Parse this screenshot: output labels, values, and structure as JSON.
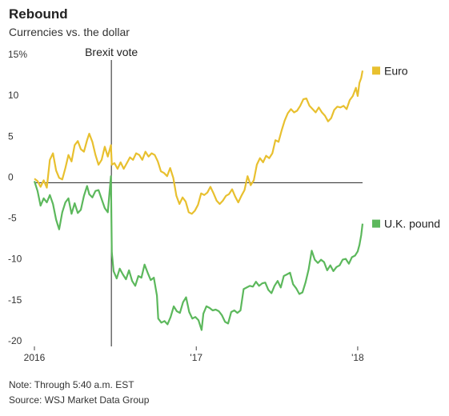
{
  "header": {
    "title": "Rebound",
    "subtitle": "Currencies vs. the dollar"
  },
  "footer": {
    "note": "Note: Through 5:40 a.m. EST",
    "source": "Source: WSJ Market Data Group"
  },
  "chart_data": {
    "type": "line",
    "title": "Rebound",
    "subtitle": "Currencies vs. the dollar",
    "xlabel": "",
    "ylabel": "",
    "ylim": [
      -20,
      15
    ],
    "xlim": [
      "2016-01-01",
      "2018-01-12"
    ],
    "y_ticks": [
      15,
      10,
      5,
      0,
      -5,
      -10,
      -15,
      -20
    ],
    "y_tick_labels": [
      "15%",
      "10",
      "5",
      "0",
      "-5",
      "-10",
      "-15",
      "-20"
    ],
    "x_ticks": [
      "2016-01-01",
      "2017-01-01",
      "2018-01-01"
    ],
    "x_tick_labels": [
      "2016",
      "'17",
      "'18"
    ],
    "grid": "zero line only",
    "legend": "right, at line ends",
    "annotation": {
      "label": "Brexit vote",
      "x": "2016-06-23"
    },
    "series": [
      {
        "name": "Euro",
        "color": "#e8c02f",
        "points": [
          [
            "2016-01-01",
            0.5
          ],
          [
            "2016-01-08",
            0.2
          ],
          [
            "2016-01-15",
            -0.5
          ],
          [
            "2016-01-22",
            0.3
          ],
          [
            "2016-01-29",
            -0.6
          ],
          [
            "2016-02-05",
            2.8
          ],
          [
            "2016-02-12",
            3.6
          ],
          [
            "2016-02-19",
            1.5
          ],
          [
            "2016-02-26",
            0.6
          ],
          [
            "2016-03-04",
            0.4
          ],
          [
            "2016-03-11",
            1.8
          ],
          [
            "2016-03-18",
            3.4
          ],
          [
            "2016-03-25",
            2.6
          ],
          [
            "2016-04-01",
            4.6
          ],
          [
            "2016-04-08",
            5.1
          ],
          [
            "2016-04-15",
            4.1
          ],
          [
            "2016-04-22",
            3.8
          ],
          [
            "2016-04-29",
            5.2
          ],
          [
            "2016-05-04",
            6.0
          ],
          [
            "2016-05-11",
            5.0
          ],
          [
            "2016-05-18",
            3.4
          ],
          [
            "2016-05-25",
            2.2
          ],
          [
            "2016-06-01",
            2.8
          ],
          [
            "2016-06-08",
            4.4
          ],
          [
            "2016-06-15",
            3.2
          ],
          [
            "2016-06-22",
            4.6
          ],
          [
            "2016-06-24",
            2.2
          ],
          [
            "2016-06-30",
            2.4
          ],
          [
            "2016-07-07",
            1.7
          ],
          [
            "2016-07-14",
            2.5
          ],
          [
            "2016-07-21",
            1.7
          ],
          [
            "2016-07-28",
            2.4
          ],
          [
            "2016-08-04",
            3.1
          ],
          [
            "2016-08-11",
            2.8
          ],
          [
            "2016-08-18",
            3.6
          ],
          [
            "2016-08-25",
            3.4
          ],
          [
            "2016-09-01",
            2.8
          ],
          [
            "2016-09-08",
            3.8
          ],
          [
            "2016-09-15",
            3.2
          ],
          [
            "2016-09-22",
            3.6
          ],
          [
            "2016-09-29",
            3.4
          ],
          [
            "2016-10-06",
            2.6
          ],
          [
            "2016-10-13",
            1.4
          ],
          [
            "2016-10-20",
            1.2
          ],
          [
            "2016-10-27",
            0.8
          ],
          [
            "2016-11-03",
            1.8
          ],
          [
            "2016-11-10",
            0.6
          ],
          [
            "2016-11-17",
            -1.6
          ],
          [
            "2016-11-24",
            -2.6
          ],
          [
            "2016-12-01",
            -1.8
          ],
          [
            "2016-12-08",
            -2.3
          ],
          [
            "2016-12-15",
            -3.6
          ],
          [
            "2016-12-22",
            -3.8
          ],
          [
            "2016-12-29",
            -3.4
          ],
          [
            "2017-01-05",
            -2.7
          ],
          [
            "2017-01-12",
            -1.3
          ],
          [
            "2017-01-19",
            -1.5
          ],
          [
            "2017-01-26",
            -1.2
          ],
          [
            "2017-02-02",
            -0.5
          ],
          [
            "2017-02-09",
            -1.3
          ],
          [
            "2017-02-16",
            -2.2
          ],
          [
            "2017-02-23",
            -2.6
          ],
          [
            "2017-03-02",
            -2.2
          ],
          [
            "2017-03-09",
            -1.6
          ],
          [
            "2017-03-16",
            -1.4
          ],
          [
            "2017-03-23",
            -0.8
          ],
          [
            "2017-03-30",
            -1.7
          ],
          [
            "2017-04-06",
            -2.4
          ],
          [
            "2017-04-13",
            -1.6
          ],
          [
            "2017-04-20",
            -0.9
          ],
          [
            "2017-04-27",
            0.8
          ],
          [
            "2017-05-04",
            -0.3
          ],
          [
            "2017-05-11",
            0.3
          ],
          [
            "2017-05-18",
            2.2
          ],
          [
            "2017-05-25",
            3.0
          ],
          [
            "2017-06-01",
            2.5
          ],
          [
            "2017-06-08",
            3.3
          ],
          [
            "2017-06-15",
            3.0
          ],
          [
            "2017-06-22",
            3.6
          ],
          [
            "2017-06-29",
            5.2
          ],
          [
            "2017-07-06",
            5.0
          ],
          [
            "2017-07-13",
            6.4
          ],
          [
            "2017-07-20",
            7.6
          ],
          [
            "2017-07-27",
            8.5
          ],
          [
            "2017-08-03",
            9.0
          ],
          [
            "2017-08-10",
            8.6
          ],
          [
            "2017-08-17",
            8.8
          ],
          [
            "2017-08-24",
            9.4
          ],
          [
            "2017-08-31",
            10.2
          ],
          [
            "2017-09-07",
            10.3
          ],
          [
            "2017-09-14",
            9.4
          ],
          [
            "2017-09-21",
            9.0
          ],
          [
            "2017-09-28",
            8.6
          ],
          [
            "2017-10-05",
            9.2
          ],
          [
            "2017-10-12",
            8.6
          ],
          [
            "2017-10-19",
            8.2
          ],
          [
            "2017-10-26",
            7.5
          ],
          [
            "2017-11-02",
            7.9
          ],
          [
            "2017-11-09",
            8.9
          ],
          [
            "2017-11-16",
            9.3
          ],
          [
            "2017-11-23",
            9.2
          ],
          [
            "2017-11-30",
            9.4
          ],
          [
            "2017-12-07",
            9.0
          ],
          [
            "2017-12-14",
            10.1
          ],
          [
            "2017-12-21",
            10.6
          ],
          [
            "2017-12-28",
            11.6
          ],
          [
            "2018-01-01",
            10.6
          ],
          [
            "2018-01-05",
            12.2
          ],
          [
            "2018-01-09",
            12.8
          ],
          [
            "2018-01-12",
            13.7
          ]
        ]
      },
      {
        "name": "U.K. pound",
        "color": "#5cb85c",
        "points": [
          [
            "2016-01-01",
            0.2
          ],
          [
            "2016-01-08",
            -1.0
          ],
          [
            "2016-01-15",
            -2.8
          ],
          [
            "2016-01-22",
            -1.9
          ],
          [
            "2016-01-29",
            -2.4
          ],
          [
            "2016-02-05",
            -1.5
          ],
          [
            "2016-02-12",
            -2.6
          ],
          [
            "2016-02-19",
            -4.5
          ],
          [
            "2016-02-26",
            -5.7
          ],
          [
            "2016-03-04",
            -3.6
          ],
          [
            "2016-03-11",
            -2.4
          ],
          [
            "2016-03-18",
            -1.9
          ],
          [
            "2016-03-25",
            -3.8
          ],
          [
            "2016-04-01",
            -2.5
          ],
          [
            "2016-04-08",
            -3.7
          ],
          [
            "2016-04-15",
            -3.3
          ],
          [
            "2016-04-22",
            -1.6
          ],
          [
            "2016-04-29",
            -0.4
          ],
          [
            "2016-05-04",
            -1.4
          ],
          [
            "2016-05-11",
            -1.8
          ],
          [
            "2016-05-18",
            -1.0
          ],
          [
            "2016-05-25",
            -0.9
          ],
          [
            "2016-06-01",
            -2.0
          ],
          [
            "2016-06-08",
            -3.1
          ],
          [
            "2016-06-15",
            -3.6
          ],
          [
            "2016-06-22",
            0.8
          ],
          [
            "2016-06-24",
            -8.5
          ],
          [
            "2016-06-28",
            -10.8
          ],
          [
            "2016-07-05",
            -11.7
          ],
          [
            "2016-07-12",
            -10.5
          ],
          [
            "2016-07-19",
            -11.2
          ],
          [
            "2016-07-26",
            -11.8
          ],
          [
            "2016-08-02",
            -10.7
          ],
          [
            "2016-08-09",
            -12.0
          ],
          [
            "2016-08-16",
            -12.6
          ],
          [
            "2016-08-23",
            -11.4
          ],
          [
            "2016-08-30",
            -11.6
          ],
          [
            "2016-09-06",
            -10.0
          ],
          [
            "2016-09-13",
            -11.0
          ],
          [
            "2016-09-20",
            -11.9
          ],
          [
            "2016-09-27",
            -11.6
          ],
          [
            "2016-10-04",
            -13.8
          ],
          [
            "2016-10-07",
            -16.6
          ],
          [
            "2016-10-14",
            -17.1
          ],
          [
            "2016-10-21",
            -16.9
          ],
          [
            "2016-10-28",
            -17.3
          ],
          [
            "2016-11-04",
            -16.4
          ],
          [
            "2016-11-11",
            -15.1
          ],
          [
            "2016-11-18",
            -15.7
          ],
          [
            "2016-11-25",
            -15.9
          ],
          [
            "2016-12-02",
            -14.6
          ],
          [
            "2016-12-09",
            -14.0
          ],
          [
            "2016-12-16",
            -15.8
          ],
          [
            "2016-12-23",
            -16.6
          ],
          [
            "2016-12-30",
            -16.4
          ],
          [
            "2017-01-06",
            -16.8
          ],
          [
            "2017-01-13",
            -18.0
          ],
          [
            "2017-01-17",
            -16.0
          ],
          [
            "2017-01-24",
            -15.1
          ],
          [
            "2017-01-31",
            -15.3
          ],
          [
            "2017-02-07",
            -15.6
          ],
          [
            "2017-02-14",
            -15.5
          ],
          [
            "2017-02-21",
            -15.7
          ],
          [
            "2017-02-28",
            -16.2
          ],
          [
            "2017-03-07",
            -17.0
          ],
          [
            "2017-03-14",
            -17.2
          ],
          [
            "2017-03-21",
            -15.8
          ],
          [
            "2017-03-28",
            -15.6
          ],
          [
            "2017-04-04",
            -15.9
          ],
          [
            "2017-04-11",
            -15.6
          ],
          [
            "2017-04-18",
            -13.0
          ],
          [
            "2017-04-25",
            -12.8
          ],
          [
            "2017-05-02",
            -12.6
          ],
          [
            "2017-05-09",
            -12.7
          ],
          [
            "2017-05-16",
            -12.1
          ],
          [
            "2017-05-23",
            -12.6
          ],
          [
            "2017-05-30",
            -12.3
          ],
          [
            "2017-06-06",
            -12.2
          ],
          [
            "2017-06-13",
            -13.1
          ],
          [
            "2017-06-20",
            -13.5
          ],
          [
            "2017-06-27",
            -12.6
          ],
          [
            "2017-07-04",
            -12.0
          ],
          [
            "2017-07-11",
            -12.8
          ],
          [
            "2017-07-18",
            -11.4
          ],
          [
            "2017-07-25",
            -11.2
          ],
          [
            "2017-08-01",
            -11.0
          ],
          [
            "2017-08-08",
            -12.4
          ],
          [
            "2017-08-15",
            -12.9
          ],
          [
            "2017-08-22",
            -13.6
          ],
          [
            "2017-08-29",
            -13.4
          ],
          [
            "2017-09-05",
            -12.2
          ],
          [
            "2017-09-12",
            -10.6
          ],
          [
            "2017-09-19",
            -8.3
          ],
          [
            "2017-09-26",
            -9.4
          ],
          [
            "2017-10-03",
            -9.8
          ],
          [
            "2017-10-10",
            -9.4
          ],
          [
            "2017-10-17",
            -9.7
          ],
          [
            "2017-10-24",
            -10.7
          ],
          [
            "2017-10-31",
            -10.1
          ],
          [
            "2017-11-07",
            -10.8
          ],
          [
            "2017-11-14",
            -10.3
          ],
          [
            "2017-11-21",
            -10.1
          ],
          [
            "2017-11-28",
            -9.4
          ],
          [
            "2017-12-05",
            -9.3
          ],
          [
            "2017-12-12",
            -9.9
          ],
          [
            "2017-12-19",
            -9.1
          ],
          [
            "2017-12-26",
            -8.9
          ],
          [
            "2018-01-01",
            -8.4
          ],
          [
            "2018-01-05",
            -7.6
          ],
          [
            "2018-01-09",
            -6.4
          ],
          [
            "2018-01-12",
            -5.0
          ]
        ]
      }
    ]
  }
}
